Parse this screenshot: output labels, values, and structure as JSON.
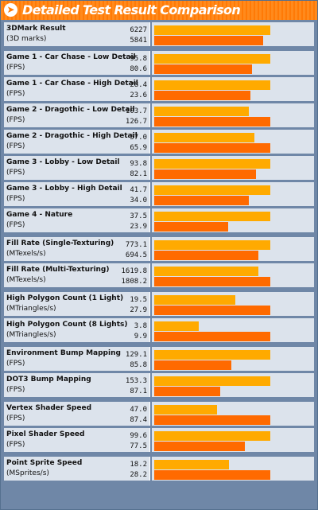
{
  "header": {
    "title": "Detailed Test Result Comparison",
    "icon": "arrow-right-icon"
  },
  "colors": {
    "series_a": "#ffaa00",
    "series_b": "#ff6a00",
    "panel": "#6f87a7",
    "cell": "#dce3ec",
    "header": "#ff7a06"
  },
  "chart_data": {
    "type": "bar",
    "title": "Detailed Test Result Comparison",
    "orientation": "horizontal",
    "groups": [
      {
        "rows": [
          {
            "name": "3DMark Result",
            "unit": "(3D marks)",
            "values": [
              6227,
              5841
            ]
          }
        ]
      },
      {
        "rows": [
          {
            "name": "Game 1 - Car Chase - Low Detail",
            "unit": "(FPS)",
            "values": [
              95.8,
              80.6
            ]
          },
          {
            "name": "Game 1 - Car Chase - High Detail",
            "unit": "(FPS)",
            "values": [
              28.4,
              23.6
            ]
          },
          {
            "name": "Game 2 - Dragothic - Low Detail",
            "unit": "(FPS)",
            "values": [
              103.7,
              126.7
            ]
          },
          {
            "name": "Game 2 - Dragothic - High Detail",
            "unit": "(FPS)",
            "values": [
              57.0,
              65.9
            ]
          },
          {
            "name": "Game 3 - Lobby - Low Detail",
            "unit": "(FPS)",
            "values": [
              93.8,
              82.1
            ]
          },
          {
            "name": "Game 3 - Lobby - High Detail",
            "unit": "(FPS)",
            "values": [
              41.7,
              34.0
            ]
          },
          {
            "name": "Game 4 - Nature",
            "unit": "(FPS)",
            "values": [
              37.5,
              23.9
            ]
          }
        ]
      },
      {
        "rows": [
          {
            "name": "Fill Rate (Single-Texturing)",
            "unit": "(MTexels/s)",
            "values": [
              773.1,
              694.5
            ]
          },
          {
            "name": "Fill Rate (Multi-Texturing)",
            "unit": "(MTexels/s)",
            "values": [
              1619.8,
              1808.2
            ]
          }
        ]
      },
      {
        "rows": [
          {
            "name": "High Polygon Count (1 Light)",
            "unit": "(MTriangles/s)",
            "values": [
              19.5,
              27.9
            ]
          },
          {
            "name": "High Polygon Count (8 Lights)",
            "unit": "(MTriangles/s)",
            "values": [
              3.8,
              9.9
            ]
          }
        ]
      },
      {
        "rows": [
          {
            "name": "Environment Bump Mapping",
            "unit": "(FPS)",
            "values": [
              129.1,
              85.8
            ]
          },
          {
            "name": "DOT3 Bump Mapping",
            "unit": "(FPS)",
            "values": [
              153.3,
              87.1
            ]
          }
        ]
      },
      {
        "rows": [
          {
            "name": "Vertex Shader Speed",
            "unit": "(FPS)",
            "values": [
              47.0,
              87.4
            ]
          },
          {
            "name": "Pixel Shader Speed",
            "unit": "(FPS)",
            "values": [
              99.6,
              77.5
            ]
          }
        ]
      },
      {
        "rows": [
          {
            "name": "Point Sprite Speed",
            "unit": "(MSprites/s)",
            "values": [
              18.2,
              28.2
            ]
          }
        ]
      }
    ]
  }
}
